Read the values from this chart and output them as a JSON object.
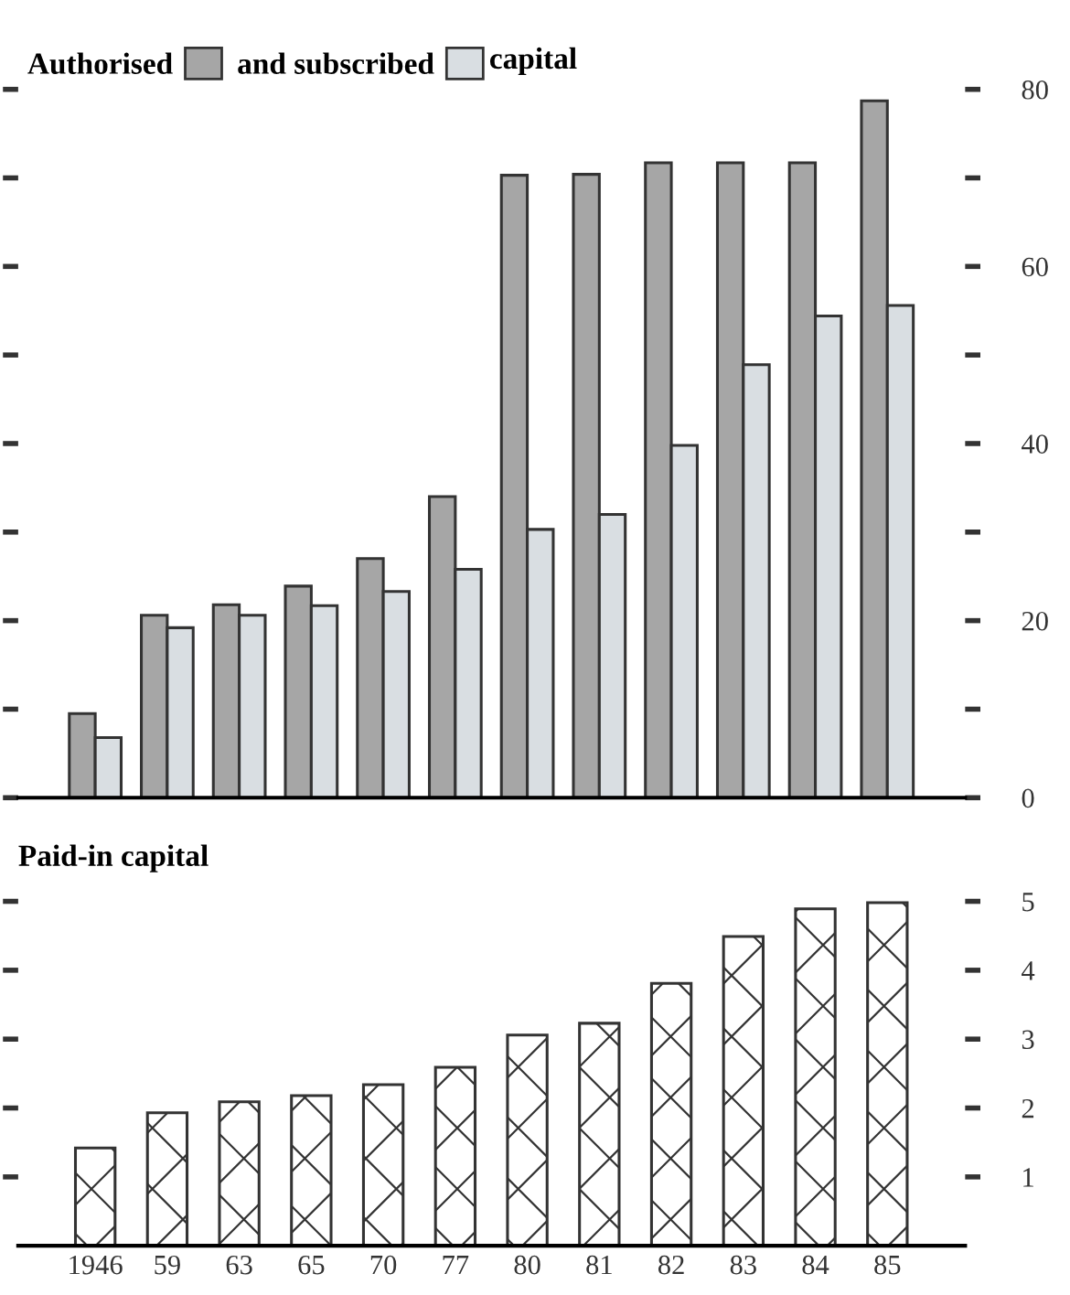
{
  "chart_data": [
    {
      "type": "bar",
      "categories": [
        "1946",
        "59",
        "63",
        "65",
        "70",
        "77",
        "80",
        "81",
        "82",
        "83",
        "84",
        "85"
      ],
      "series": [
        {
          "name": "Authorised",
          "color": "#a6a6a6",
          "values": [
            9.5,
            20.6,
            21.8,
            23.9,
            27,
            34,
            70.3,
            70.4,
            71.7,
            71.7,
            71.7,
            78.7
          ]
        },
        {
          "name": "and subscribed",
          "color": "#d9dee2",
          "values": [
            6.8,
            19.2,
            20.6,
            21.7,
            23.3,
            25.8,
            30.3,
            32,
            39.8,
            48.9,
            54.4,
            55.6
          ]
        }
      ],
      "annotations": [
        "capital"
      ],
      "ylim": [
        0,
        80
      ],
      "yticks": [
        0,
        {
          "value": 10,
          "label": null
        },
        20,
        {
          "value": 30,
          "label": null
        },
        40,
        {
          "value": 50,
          "label": null
        },
        60,
        {
          "value": 70,
          "label": null
        },
        80
      ],
      "legend": "top left",
      "tick_labels": "y",
      "grid": false
    },
    {
      "type": "bar",
      "title": "Paid-in capital",
      "categories": [
        "1946",
        "59",
        "63",
        "65",
        "70",
        "77",
        "80",
        "81",
        "82",
        "83",
        "84",
        "85"
      ],
      "series": [
        {
          "color": "#333333",
          "values": [
            1.42,
            1.93,
            2.09,
            2.18,
            2.34,
            2.59,
            3.06,
            3.23,
            3.81,
            4.49,
            4.89,
            4.98
          ]
        }
      ],
      "ylim": [
        0,
        5
      ],
      "yticks": [
        1,
        2,
        3,
        4,
        5
      ],
      "grid": false
    }
  ]
}
